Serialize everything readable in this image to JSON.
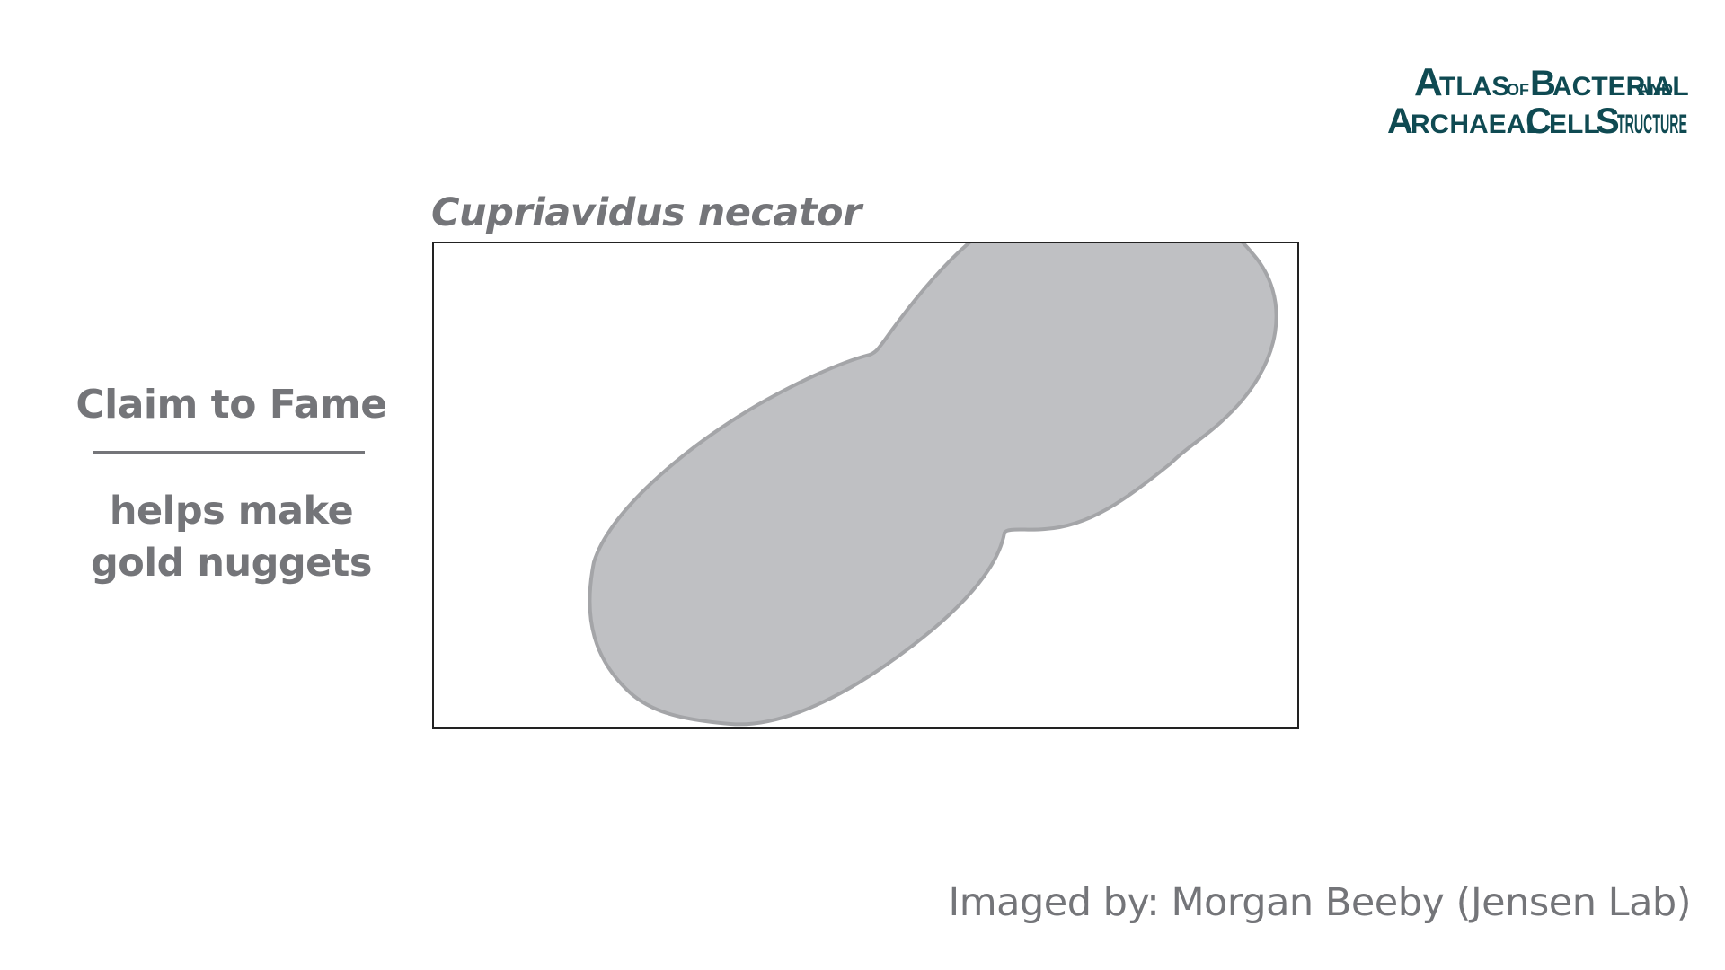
{
  "logo": {
    "line1": "ATLAS OF BACTERIAL AND",
    "line2": "ARCHAEAL CELL STRUCTURE",
    "color": "#0f4a52"
  },
  "species": {
    "name": "Cupriavidus necator"
  },
  "claim": {
    "heading": "Claim to Fame",
    "lines": [
      "helps make",
      "gold nuggets"
    ]
  },
  "credit": {
    "text": "Imaged by: Morgan Beeby (Jensen Lab)"
  },
  "colors": {
    "text_gray": "#747579",
    "cell_fill": "#bfc0c3",
    "cell_stroke": "#a4a5a8",
    "frame": "#222222"
  }
}
